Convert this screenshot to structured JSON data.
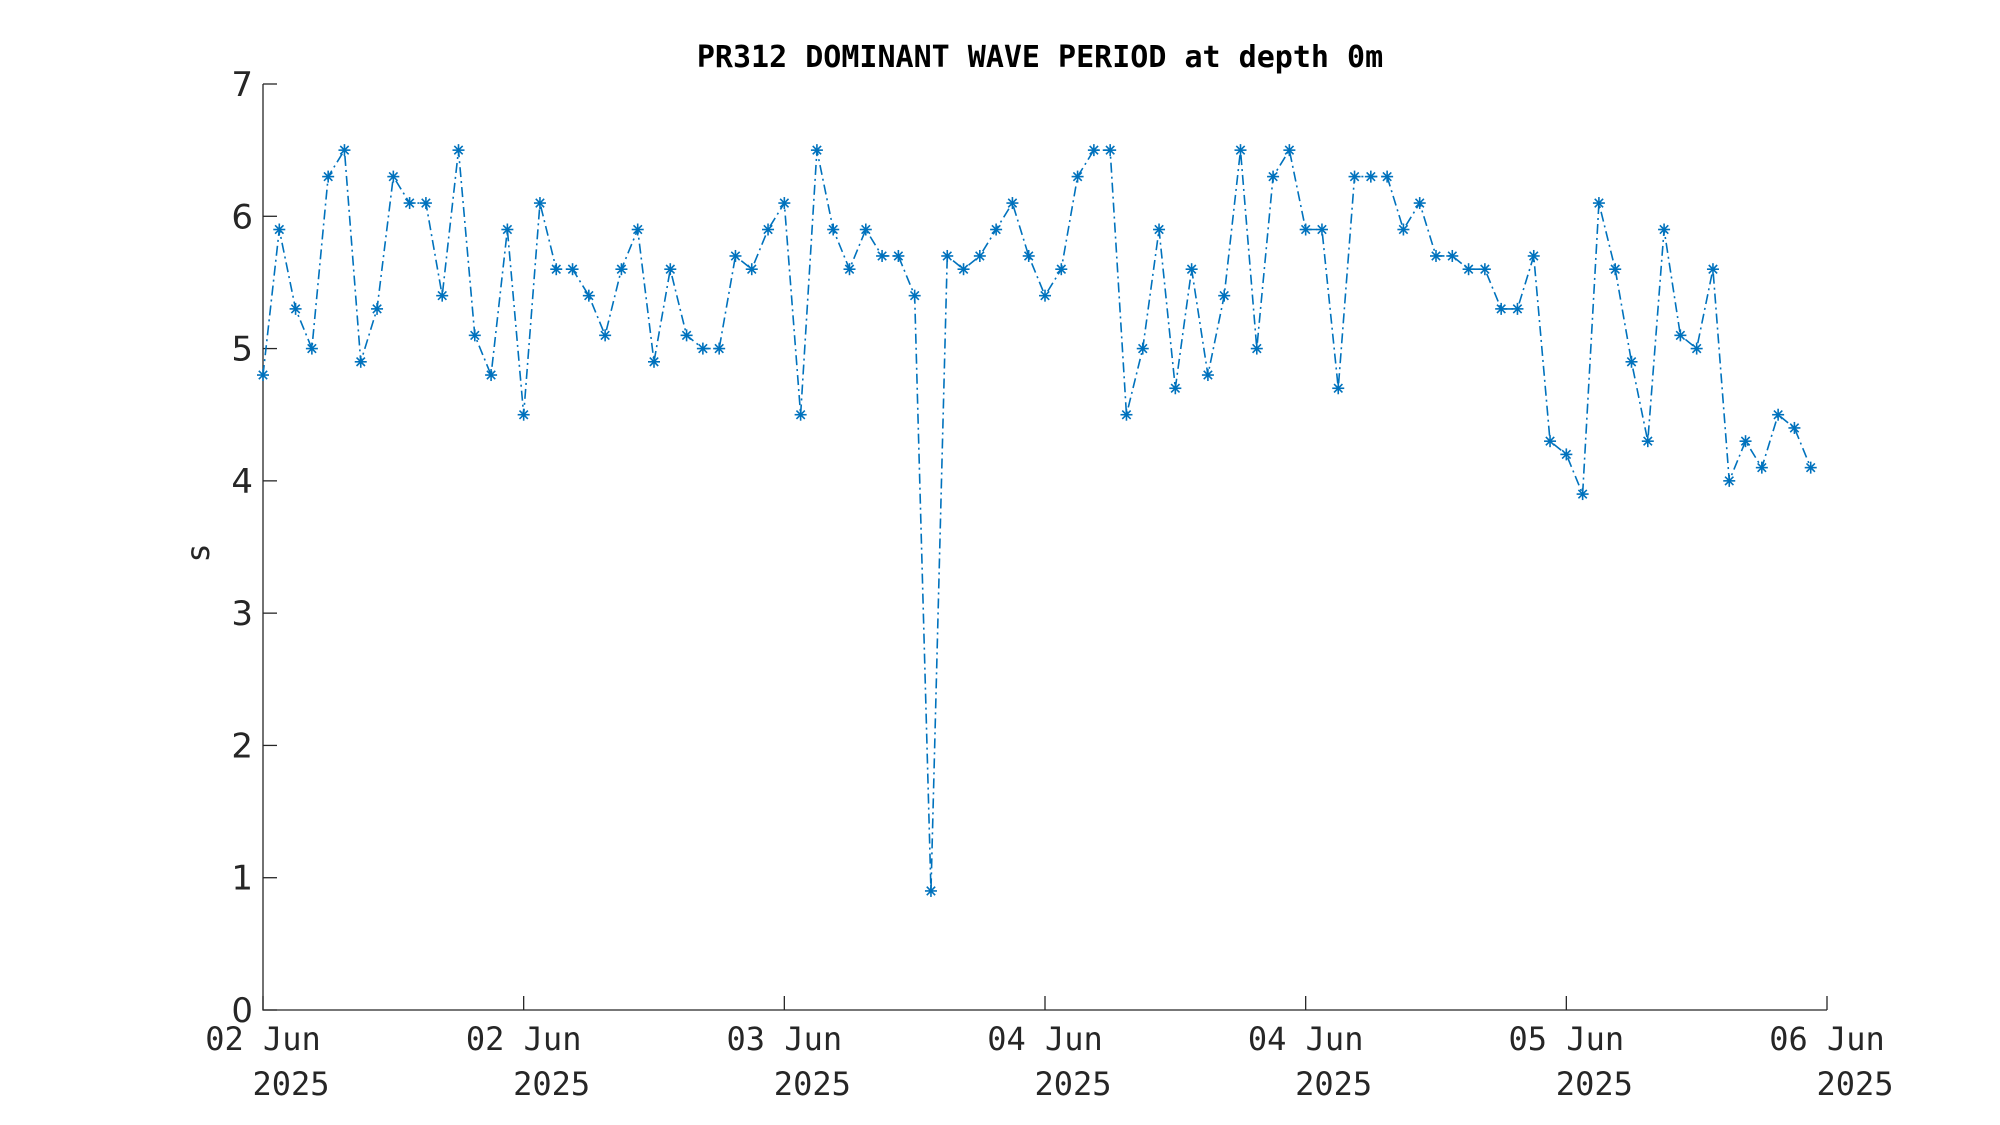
{
  "chart_data": {
    "type": "line",
    "title": "PR312 DOMINANT WAVE PERIOD at depth 0m",
    "xlabel": "",
    "ylabel": "s",
    "ylim": [
      0,
      7
    ],
    "yticks": [
      "0",
      "1",
      "2",
      "3",
      "4",
      "5",
      "6",
      "7"
    ],
    "xlim": [
      "2025-06-02 00:00",
      "2025-06-06 00:00"
    ],
    "xticks": [
      {
        "line1": "02 Jun",
        "line2": "2025",
        "at": "2025-06-02 00:00"
      },
      {
        "line1": "02 Jun",
        "line2": "2025",
        "at": "2025-06-02 16:00"
      },
      {
        "line1": "03 Jun",
        "line2": "2025",
        "at": "2025-06-03 08:00"
      },
      {
        "line1": "04 Jun",
        "line2": "2025",
        "at": "2025-06-04 00:00"
      },
      {
        "line1": "04 Jun",
        "line2": "2025",
        "at": "2025-06-04 16:00"
      },
      {
        "line1": "05 Jun",
        "line2": "2025",
        "at": "2025-06-05 08:00"
      },
      {
        "line1": "06 Jun",
        "line2": "2025",
        "at": "2025-06-06 00:00"
      }
    ],
    "grid": false,
    "series": [
      {
        "color": "#0072BD",
        "marker": "asterisk",
        "line_style": "dash-dot",
        "time_start": "2025-06-02 00:00",
        "time_step_minutes": 60,
        "values": [
          4.8,
          5.9,
          5.3,
          5.0,
          6.3,
          6.5,
          4.9,
          5.3,
          6.3,
          6.1,
          6.1,
          5.4,
          6.5,
          5.1,
          4.8,
          5.9,
          4.5,
          6.1,
          5.6,
          5.6,
          5.4,
          5.1,
          5.6,
          5.9,
          4.9,
          5.6,
          5.1,
          5.0,
          5.0,
          5.7,
          5.6,
          5.9,
          6.1,
          4.5,
          6.5,
          5.9,
          5.6,
          5.9,
          5.7,
          5.7,
          5.4,
          0.9,
          5.7,
          5.6,
          5.7,
          5.9,
          6.1,
          5.7,
          5.4,
          5.6,
          6.3,
          6.5,
          6.5,
          4.5,
          5.0,
          5.9,
          4.7,
          5.6,
          4.8,
          5.4,
          6.5,
          5.0,
          6.3,
          6.5,
          5.9,
          5.9,
          4.7,
          6.3,
          6.3,
          6.3,
          5.9,
          6.1,
          5.7,
          5.7,
          5.6,
          5.6,
          5.3,
          5.3,
          5.7,
          4.3,
          4.2,
          3.9,
          6.1,
          5.6,
          4.9,
          4.3,
          5.9,
          5.1,
          5.0,
          5.6,
          4.0,
          4.3,
          4.1,
          4.5,
          4.4,
          4.1
        ]
      }
    ]
  }
}
